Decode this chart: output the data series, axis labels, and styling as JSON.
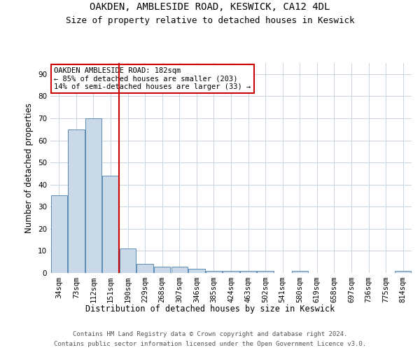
{
  "title_line1": "OAKDEN, AMBLESIDE ROAD, KESWICK, CA12 4DL",
  "title_line2": "Size of property relative to detached houses in Keswick",
  "xlabel": "Distribution of detached houses by size in Keswick",
  "ylabel": "Number of detached properties",
  "footer_line1": "Contains HM Land Registry data © Crown copyright and database right 2024.",
  "footer_line2": "Contains public sector information licensed under the Open Government Licence v3.0.",
  "bin_labels": [
    "34sqm",
    "73sqm",
    "112sqm",
    "151sqm",
    "190sqm",
    "229sqm",
    "268sqm",
    "307sqm",
    "346sqm",
    "385sqm",
    "424sqm",
    "463sqm",
    "502sqm",
    "541sqm",
    "580sqm",
    "619sqm",
    "658sqm",
    "697sqm",
    "736sqm",
    "775sqm",
    "814sqm"
  ],
  "values": [
    35,
    65,
    70,
    44,
    11,
    4,
    3,
    3,
    2,
    1,
    1,
    1,
    1,
    0,
    1,
    0,
    0,
    0,
    0,
    0,
    1
  ],
  "bar_color": "#c9d9e8",
  "bar_edge_color": "#5b8db8",
  "property_bin_index": 4,
  "red_line_color": "#cc0000",
  "annotation_text": "OAKDEN AMBLESIDE ROAD: 182sqm\n← 85% of detached houses are smaller (203)\n14% of semi-detached houses are larger (33) →",
  "annotation_box_color": "#ffffff",
  "annotation_box_edge_color": "#cc0000",
  "ylim": [
    0,
    95
  ],
  "yticks": [
    0,
    10,
    20,
    30,
    40,
    50,
    60,
    70,
    80,
    90
  ],
  "background_color": "#ffffff",
  "grid_color": "#c8d4e0",
  "title_fontsize": 10,
  "subtitle_fontsize": 9,
  "axis_label_fontsize": 8.5,
  "tick_fontsize": 7.5,
  "annotation_fontsize": 7.5,
  "footer_fontsize": 6.5
}
